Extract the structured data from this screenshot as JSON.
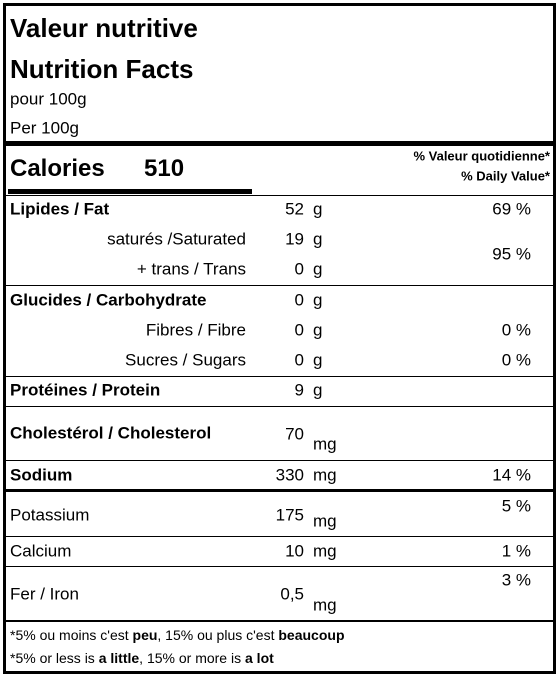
{
  "header": {
    "title_fr": "Valeur nutritive",
    "title_en": "Nutrition Facts",
    "serving_fr": "pour 100g",
    "serving_en": "Per 100g"
  },
  "calories": {
    "label": "Calories",
    "value": "510",
    "dv_header_fr": "% Valeur quotidienne*",
    "dv_header_en": "% Daily Value*"
  },
  "nutrients": [
    {
      "label": "Lipides / Fat",
      "amount": "52",
      "unit": "g",
      "daily_value": "69 %"
    },
    {
      "label": "saturés /Saturated",
      "amount": "19",
      "unit": "g"
    },
    {
      "label": "+ trans / Trans",
      "amount": "0",
      "unit": "g"
    },
    {
      "label": "Glucides / Carbohydrate",
      "amount": "0",
      "unit": "g"
    },
    {
      "label": "Fibres / Fibre",
      "amount": "0",
      "unit": "g",
      "daily_value": "0 %"
    },
    {
      "label": "Sucres / Sugars",
      "amount": "0",
      "unit": "g",
      "daily_value": "0 %"
    },
    {
      "label": "Protéines / Protein",
      "amount": "9",
      "unit": "g"
    },
    {
      "label": "Cholestérol / Cholesterol",
      "amount": "70",
      "unit": "mg"
    },
    {
      "label": "Sodium",
      "amount": "330",
      "unit": "mg",
      "daily_value": "14 %"
    },
    {
      "label": "Potassium",
      "amount": "175",
      "unit": "mg",
      "daily_value": "5 %"
    },
    {
      "label": "Calcium",
      "amount": "10",
      "unit": "mg",
      "daily_value": "1 %"
    },
    {
      "label": "Fer / Iron",
      "amount": "0,5",
      "unit": "mg",
      "daily_value": "3 %"
    }
  ],
  "saturated_trans_daily_value": "95 %",
  "footnote": {
    "fr": [
      "*5% ou moins c'est ",
      "peu",
      ", 15% ou plus c'est ",
      "beaucoup"
    ],
    "en": [
      "*5% or less is ",
      "a little",
      ", 15% or more is ",
      "a lot"
    ]
  }
}
